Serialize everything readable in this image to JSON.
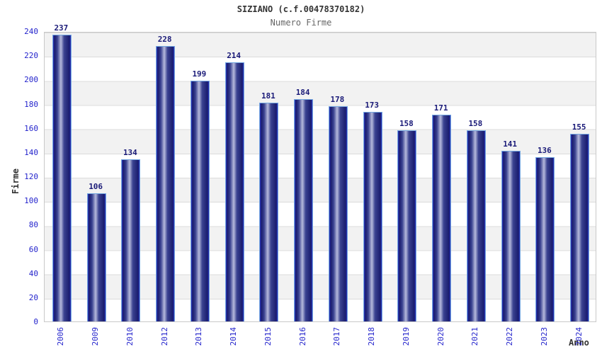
{
  "chart_data": {
    "type": "bar",
    "title": "SIZIANO (c.f.00478370182)",
    "subtitle": "Numero Firme",
    "xlabel": "Anno",
    "ylabel": "Firme",
    "categories": [
      "2006",
      "2009",
      "2010",
      "2012",
      "2013",
      "2014",
      "2015",
      "2016",
      "2017",
      "2018",
      "2019",
      "2020",
      "2021",
      "2022",
      "2023",
      "2024"
    ],
    "values": [
      237,
      106,
      134,
      228,
      199,
      214,
      181,
      184,
      178,
      173,
      158,
      171,
      158,
      141,
      136,
      155
    ],
    "ylim": [
      0,
      240
    ],
    "ytick_step": 20,
    "grid": "horizontal-bands",
    "legend": "none",
    "colors": {
      "bar_border": "#74a7e0",
      "bar_edge": "#2c38c0",
      "bar_dark": "#1a1c6e",
      "bar_mid": "#3a4290",
      "bar_highlight": "#b6badc",
      "tick_label": "#2424cc",
      "value_label": "#1a1a78",
      "band_gray": "#f2f2f2",
      "grid_line": "#dcdcdc",
      "title": "#333333",
      "subtitle": "#666666",
      "axis_label": "#333333"
    }
  }
}
